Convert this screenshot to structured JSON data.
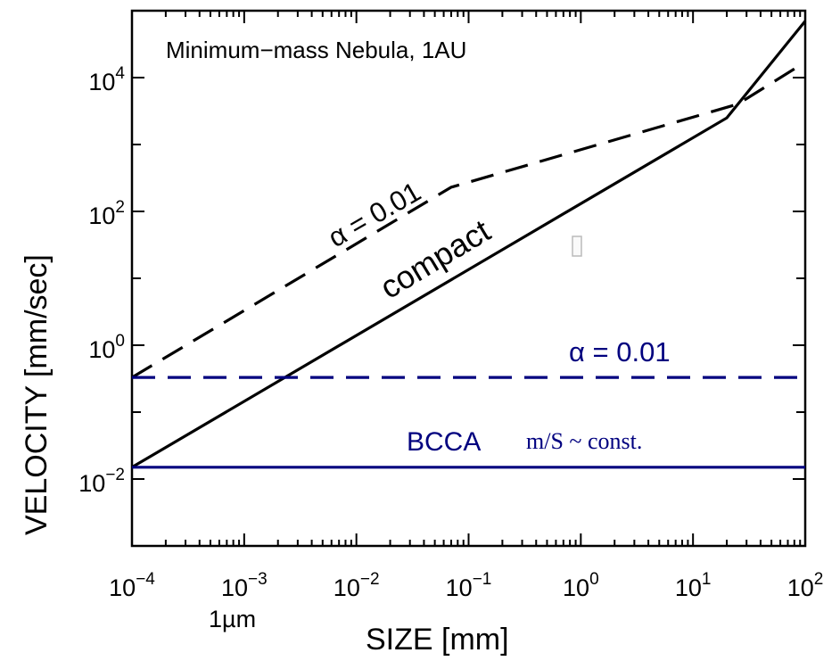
{
  "chart_data": {
    "type": "line",
    "title": "Minimum−mass Nebula, 1AU",
    "xlabel": "SIZE  [mm]",
    "ylabel": "VELOCITY  [mm/sec]",
    "xscale": "log",
    "yscale": "log",
    "xlim": [
      0.0001,
      100
    ],
    "ylim": [
      0.001,
      100000
    ],
    "x_ticks": [
      {
        "value": 0.0001,
        "base": "10",
        "exp": "−4"
      },
      {
        "value": 0.001,
        "base": "10",
        "exp": "−3"
      },
      {
        "value": 0.01,
        "base": "10",
        "exp": "−2"
      },
      {
        "value": 0.1,
        "base": "10",
        "exp": "−1"
      },
      {
        "value": 1,
        "base": "10",
        "exp": "0"
      },
      {
        "value": 10,
        "base": "10",
        "exp": "1"
      },
      {
        "value": 100,
        "base": "10",
        "exp": "2"
      }
    ],
    "y_ticks": [
      {
        "value": 0.01,
        "base": "10",
        "exp": "−2"
      },
      {
        "value": 1,
        "base": "10",
        "exp": "0"
      },
      {
        "value": 100,
        "base": "10",
        "exp": "2"
      },
      {
        "value": 10000,
        "base": "10",
        "exp": "4"
      }
    ],
    "x_extra_label": {
      "text": "1µm",
      "value": 0.001
    },
    "grid": false,
    "series": [
      {
        "name": "compact",
        "color": "#000000",
        "style": "solid",
        "x": [
          0.0001,
          20,
          100
        ],
        "y": [
          0.015,
          2500,
          70000
        ]
      },
      {
        "name": "α = 0.01",
        "color": "#000000",
        "style": "dashed",
        "x": [
          0.0001,
          0.07,
          25,
          100
        ],
        "y": [
          0.33,
          230,
          4000,
          17000
        ]
      },
      {
        "name": "α = 0.01",
        "color": "#00007f",
        "style": "dashed",
        "x": [
          0.0001,
          100
        ],
        "y": [
          0.33,
          0.33
        ]
      },
      {
        "name": "BCCA",
        "color": "#00007f",
        "style": "solid",
        "x": [
          0.0001,
          100
        ],
        "y": [
          0.015,
          0.015
        ]
      }
    ],
    "annotations": [
      {
        "text": "compact",
        "color": "#000000"
      },
      {
        "text": "α = 0.01",
        "color": "#000000"
      },
      {
        "text": "α = 0.01",
        "color": "#00007f"
      },
      {
        "text": "BCCA",
        "color": "#00007f"
      },
      {
        "text": "m/S ~ const.",
        "color": "#00007f"
      }
    ]
  }
}
